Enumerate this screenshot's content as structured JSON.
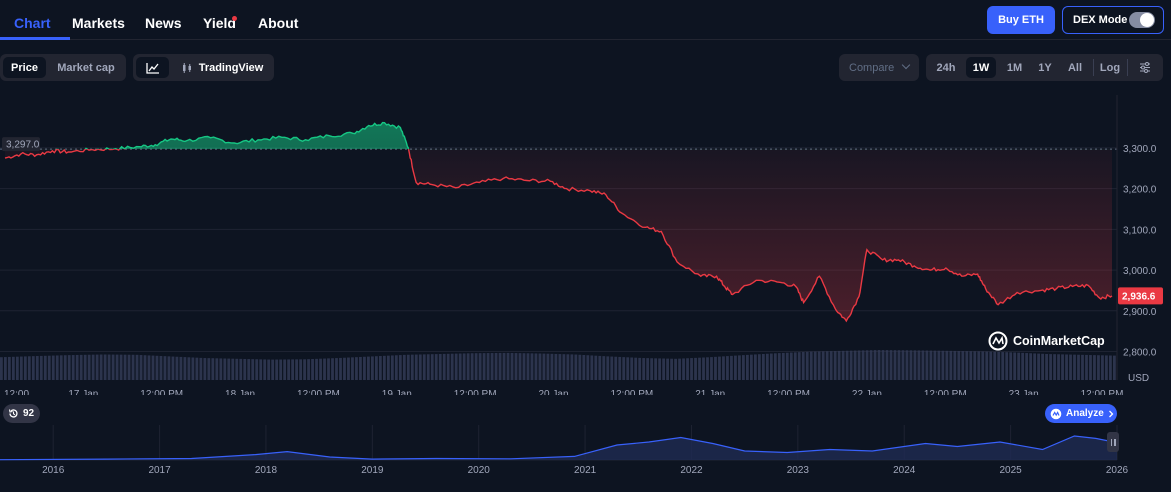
{
  "nav": {
    "tabs": [
      {
        "label": "Chart",
        "active": true
      },
      {
        "label": "Markets"
      },
      {
        "label": "News"
      },
      {
        "label": "Yield"
      },
      {
        "label": "About"
      }
    ],
    "buy_label": "Buy ETH",
    "dex_label": "DEX Mode",
    "dex_enabled": false
  },
  "toolbar": {
    "price_label": "Price",
    "marketcap_label": "Market cap",
    "tradingview_label": "TradingView",
    "compare_label": "Compare",
    "ranges": [
      "24h",
      "1W",
      "1M",
      "1Y",
      "All"
    ],
    "active_range": "1W",
    "log_label": "Log"
  },
  "watermark": "CoinMarketCap",
  "history_count": "92",
  "analyze_label": "Analyze",
  "colors": {
    "background": "#0d1421",
    "accent": "#3861fb",
    "up": "#16c784",
    "down": "#ea3943",
    "volume": "#323a55"
  },
  "chart_data": {
    "type": "area",
    "reference_price": 3297.0,
    "reference_label": "3,297.0",
    "current_price": 2936.6,
    "current_label": "2,936.6",
    "ylim": [
      2730,
      3430
    ],
    "y_ticks": [
      {
        "value": 3300,
        "label": "3,300.0"
      },
      {
        "value": 3200,
        "label": "3,200.0"
      },
      {
        "value": 3100,
        "label": "3,100.0"
      },
      {
        "value": 3000,
        "label": "3,000.0"
      },
      {
        "value": 2900,
        "label": "2,900.0"
      },
      {
        "value": 2800,
        "label": "2,800.0"
      }
    ],
    "y_unit": "USD",
    "x_ticks": [
      "12:00 ...",
      "17 Jan",
      "12:00 PM",
      "18 Jan",
      "12:00 PM",
      "19 Jan",
      "12:00 PM",
      "20 Jan",
      "12:00 PM",
      "21 Jan",
      "12:00 PM",
      "22 Jan",
      "12:00 PM",
      "23 Jan",
      "12:00 PM"
    ],
    "x_range": [
      0,
      7
    ],
    "points": [
      [
        0.0,
        3275
      ],
      [
        0.1,
        3285
      ],
      [
        0.2,
        3283
      ],
      [
        0.3,
        3293
      ],
      [
        0.4,
        3290
      ],
      [
        0.55,
        3296
      ],
      [
        0.7,
        3298
      ],
      [
        0.85,
        3303
      ],
      [
        0.95,
        3308
      ],
      [
        1.05,
        3322
      ],
      [
        1.15,
        3318
      ],
      [
        1.3,
        3325
      ],
      [
        1.45,
        3312
      ],
      [
        1.6,
        3320
      ],
      [
        1.75,
        3326
      ],
      [
        1.9,
        3320
      ],
      [
        2.05,
        3330
      ],
      [
        2.2,
        3336
      ],
      [
        2.3,
        3355
      ],
      [
        2.4,
        3362
      ],
      [
        2.5,
        3350
      ],
      [
        2.55,
        3300
      ],
      [
        2.6,
        3215
      ],
      [
        2.7,
        3210
      ],
      [
        2.85,
        3202
      ],
      [
        3.0,
        3215
      ],
      [
        3.15,
        3225
      ],
      [
        3.3,
        3220
      ],
      [
        3.45,
        3218
      ],
      [
        3.55,
        3200
      ],
      [
        3.7,
        3195
      ],
      [
        3.8,
        3185
      ],
      [
        3.9,
        3140
      ],
      [
        4.05,
        3105
      ],
      [
        4.15,
        3095
      ],
      [
        4.25,
        3020
      ],
      [
        4.4,
        2985
      ],
      [
        4.5,
        2985
      ],
      [
        4.55,
        2960
      ],
      [
        4.6,
        2940
      ],
      [
        4.75,
        2975
      ],
      [
        4.9,
        2970
      ],
      [
        5.0,
        2960
      ],
      [
        5.05,
        2920
      ],
      [
        5.15,
        2985
      ],
      [
        5.25,
        2905
      ],
      [
        5.32,
        2875
      ],
      [
        5.4,
        2935
      ],
      [
        5.45,
        3050
      ],
      [
        5.55,
        3025
      ],
      [
        5.65,
        3025
      ],
      [
        5.75,
        3010
      ],
      [
        5.85,
        3000
      ],
      [
        5.95,
        3005
      ],
      [
        6.05,
        2985
      ],
      [
        6.15,
        2990
      ],
      [
        6.2,
        2955
      ],
      [
        6.28,
        2915
      ],
      [
        6.4,
        2945
      ],
      [
        6.55,
        2950
      ],
      [
        6.65,
        2955
      ],
      [
        6.75,
        2960
      ],
      [
        6.85,
        2962
      ],
      [
        6.92,
        2932
      ],
      [
        7.0,
        2936.6
      ]
    ],
    "volume": [
      0.55,
      0.62,
      0.68,
      0.72,
      0.7,
      0.6,
      0.5,
      0.45,
      0.4,
      0.42,
      0.5,
      0.6,
      0.7,
      0.75,
      0.8,
      0.82,
      0.78,
      0.72,
      0.6,
      0.5,
      0.45,
      0.55,
      0.68,
      0.8,
      0.9,
      0.95,
      1.0,
      0.98,
      0.95,
      0.92,
      0.85,
      0.75,
      0.7,
      0.65
    ],
    "overview": {
      "type": "area",
      "x_ticks": [
        "2016",
        "2017",
        "2018",
        "2019",
        "2020",
        "2021",
        "2022",
        "2023",
        "2024",
        "2025",
        "2026"
      ],
      "x_range": [
        2015.5,
        2026.0
      ],
      "points": [
        [
          2015.5,
          0.01
        ],
        [
          2016.5,
          0.03
        ],
        [
          2017.3,
          0.05
        ],
        [
          2017.9,
          0.18
        ],
        [
          2018.2,
          0.28
        ],
        [
          2018.6,
          0.1
        ],
        [
          2019.0,
          0.03
        ],
        [
          2019.6,
          0.05
        ],
        [
          2020.3,
          0.04
        ],
        [
          2020.9,
          0.12
        ],
        [
          2021.3,
          0.5
        ],
        [
          2021.6,
          0.6
        ],
        [
          2021.9,
          0.75
        ],
        [
          2022.2,
          0.55
        ],
        [
          2022.5,
          0.3
        ],
        [
          2022.9,
          0.25
        ],
        [
          2023.3,
          0.35
        ],
        [
          2023.7,
          0.3
        ],
        [
          2024.2,
          0.55
        ],
        [
          2024.5,
          0.45
        ],
        [
          2024.9,
          0.6
        ],
        [
          2025.3,
          0.35
        ],
        [
          2025.6,
          0.8
        ],
        [
          2025.8,
          0.72
        ],
        [
          2026.0,
          0.58
        ]
      ],
      "ylim": [
        0,
        1
      ]
    }
  }
}
